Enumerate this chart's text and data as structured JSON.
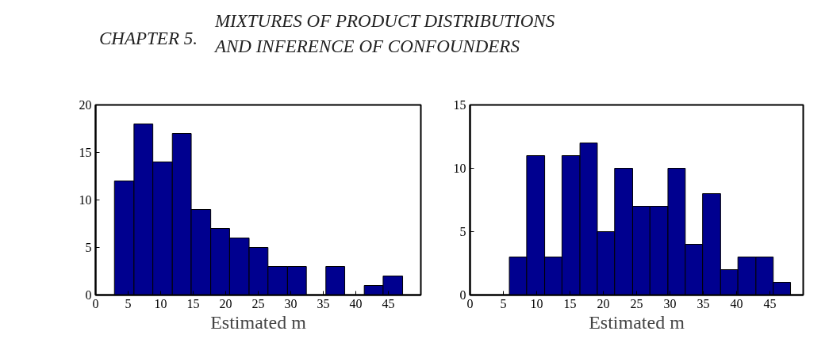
{
  "chart_data": [
    {
      "type": "histogram",
      "annotations": [
        "CHAPTER 5.",
        "MIXTURES OF PRODUCT DISTRIBUTIONS",
        "AND INFERENCE OF CONFOUNDERS"
      ],
      "xlabel": "Estimated m",
      "color": "#00008f",
      "bins": [
        2.9,
        5.9,
        8.8,
        11.8,
        14.7,
        17.7,
        20.6,
        23.6,
        26.5,
        29.5,
        32.4,
        35.4,
        38.3,
        41.3,
        44.2,
        47.2
      ],
      "values": [
        12,
        18,
        14,
        17,
        9,
        7,
        6,
        5,
        3,
        3,
        0,
        3,
        0,
        1,
        2
      ],
      "xlim": [
        0,
        50
      ],
      "xticks": [
        0,
        5,
        10,
        15,
        20,
        25,
        30,
        35,
        40,
        45
      ],
      "ylim": [
        0,
        20
      ],
      "yticks": [
        0,
        5,
        10,
        15,
        20
      ],
      "grid": false
    },
    {
      "type": "histogram",
      "xlabel": "Estimated m",
      "color": "#00008f",
      "bins": [
        5.9,
        8.5,
        11.2,
        13.8,
        16.5,
        19.1,
        21.7,
        24.4,
        27.0,
        29.7,
        32.3,
        34.9,
        37.6,
        40.2,
        42.9,
        45.5,
        48.1
      ],
      "values": [
        3,
        11,
        3,
        11,
        12,
        5,
        10,
        7,
        7,
        10,
        4,
        8,
        2,
        3,
        3,
        1
      ],
      "xlim": [
        0,
        50
      ],
      "xticks": [
        0,
        5,
        10,
        15,
        20,
        25,
        30,
        35,
        40,
        45
      ],
      "ylim": [
        0,
        15
      ],
      "yticks": [
        0,
        5,
        10,
        15
      ],
      "grid": false
    }
  ]
}
